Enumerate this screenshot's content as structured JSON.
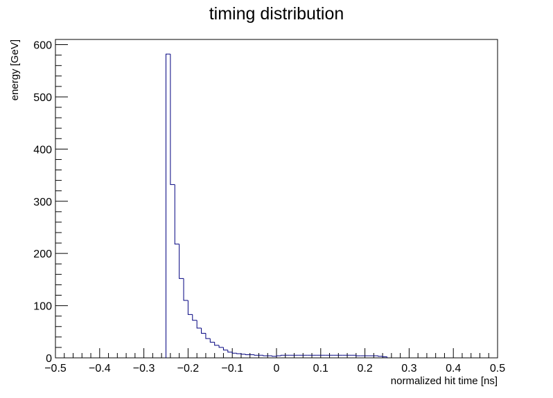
{
  "chart_data": {
    "type": "histogram",
    "title": "timing distribution",
    "xlabel": "normalized hit time [ns]",
    "ylabel": "energy [GeV]",
    "xlim": [
      -0.5,
      0.5
    ],
    "ylim": [
      0,
      610
    ],
    "grid": false,
    "line_color": "#00007f",
    "bin_width": 0.01,
    "x_ticks": [
      "−0.5",
      "−0.4",
      "−0.3",
      "−0.2",
      "−0.1",
      "0",
      "0.1",
      "0.2",
      "0.3",
      "0.4",
      "0.5"
    ],
    "x_tick_values": [
      -0.5,
      -0.4,
      -0.3,
      -0.2,
      -0.1,
      0,
      0.1,
      0.2,
      0.3,
      0.4,
      0.5
    ],
    "y_ticks": [
      "0",
      "100",
      "200",
      "300",
      "400",
      "500",
      "600"
    ],
    "y_tick_values": [
      0,
      100,
      200,
      300,
      400,
      500,
      600
    ],
    "bins": [
      {
        "x0": -0.25,
        "x1": -0.24,
        "value": 582
      },
      {
        "x0": -0.24,
        "x1": -0.23,
        "value": 332
      },
      {
        "x0": -0.23,
        "x1": -0.22,
        "value": 218
      },
      {
        "x0": -0.22,
        "x1": -0.21,
        "value": 152
      },
      {
        "x0": -0.21,
        "x1": -0.2,
        "value": 110
      },
      {
        "x0": -0.2,
        "x1": -0.19,
        "value": 83
      },
      {
        "x0": -0.19,
        "x1": -0.18,
        "value": 72
      },
      {
        "x0": -0.18,
        "x1": -0.17,
        "value": 57
      },
      {
        "x0": -0.17,
        "x1": -0.16,
        "value": 47
      },
      {
        "x0": -0.16,
        "x1": -0.15,
        "value": 37
      },
      {
        "x0": -0.15,
        "x1": -0.14,
        "value": 30
      },
      {
        "x0": -0.14,
        "x1": -0.13,
        "value": 24
      },
      {
        "x0": -0.13,
        "x1": -0.12,
        "value": 20
      },
      {
        "x0": -0.12,
        "x1": -0.11,
        "value": 15
      },
      {
        "x0": -0.11,
        "x1": -0.1,
        "value": 11
      },
      {
        "x0": -0.1,
        "x1": -0.09,
        "value": 9
      },
      {
        "x0": -0.09,
        "x1": -0.08,
        "value": 8
      },
      {
        "x0": -0.08,
        "x1": -0.07,
        "value": 7
      },
      {
        "x0": -0.07,
        "x1": -0.06,
        "value": 6
      },
      {
        "x0": -0.06,
        "x1": -0.05,
        "value": 6
      },
      {
        "x0": -0.05,
        "x1": -0.04,
        "value": 5
      },
      {
        "x0": -0.04,
        "x1": -0.03,
        "value": 5
      },
      {
        "x0": -0.03,
        "x1": -0.02,
        "value": 4
      },
      {
        "x0": -0.02,
        "x1": -0.01,
        "value": 4
      },
      {
        "x0": -0.01,
        "x1": 0.0,
        "value": 3
      },
      {
        "x0": 0.0,
        "x1": 0.01,
        "value": 4
      },
      {
        "x0": 0.01,
        "x1": 0.02,
        "value": 5
      },
      {
        "x0": 0.02,
        "x1": 0.03,
        "value": 5
      },
      {
        "x0": 0.03,
        "x1": 0.04,
        "value": 5
      },
      {
        "x0": 0.04,
        "x1": 0.05,
        "value": 5
      },
      {
        "x0": 0.05,
        "x1": 0.06,
        "value": 5
      },
      {
        "x0": 0.06,
        "x1": 0.07,
        "value": 5
      },
      {
        "x0": 0.07,
        "x1": 0.08,
        "value": 5
      },
      {
        "x0": 0.08,
        "x1": 0.09,
        "value": 5
      },
      {
        "x0": 0.09,
        "x1": 0.1,
        "value": 5
      },
      {
        "x0": 0.1,
        "x1": 0.11,
        "value": 5
      },
      {
        "x0": 0.11,
        "x1": 0.12,
        "value": 5
      },
      {
        "x0": 0.12,
        "x1": 0.13,
        "value": 5
      },
      {
        "x0": 0.13,
        "x1": 0.14,
        "value": 5
      },
      {
        "x0": 0.14,
        "x1": 0.15,
        "value": 5
      },
      {
        "x0": 0.15,
        "x1": 0.16,
        "value": 5
      },
      {
        "x0": 0.16,
        "x1": 0.17,
        "value": 5
      },
      {
        "x0": 0.17,
        "x1": 0.18,
        "value": 5
      },
      {
        "x0": 0.18,
        "x1": 0.19,
        "value": 4
      },
      {
        "x0": 0.19,
        "x1": 0.2,
        "value": 4
      },
      {
        "x0": 0.2,
        "x1": 0.21,
        "value": 4
      },
      {
        "x0": 0.21,
        "x1": 0.22,
        "value": 4
      },
      {
        "x0": 0.22,
        "x1": 0.23,
        "value": 4
      },
      {
        "x0": 0.23,
        "x1": 0.24,
        "value": 3
      },
      {
        "x0": 0.24,
        "x1": 0.25,
        "value": 2
      }
    ]
  }
}
